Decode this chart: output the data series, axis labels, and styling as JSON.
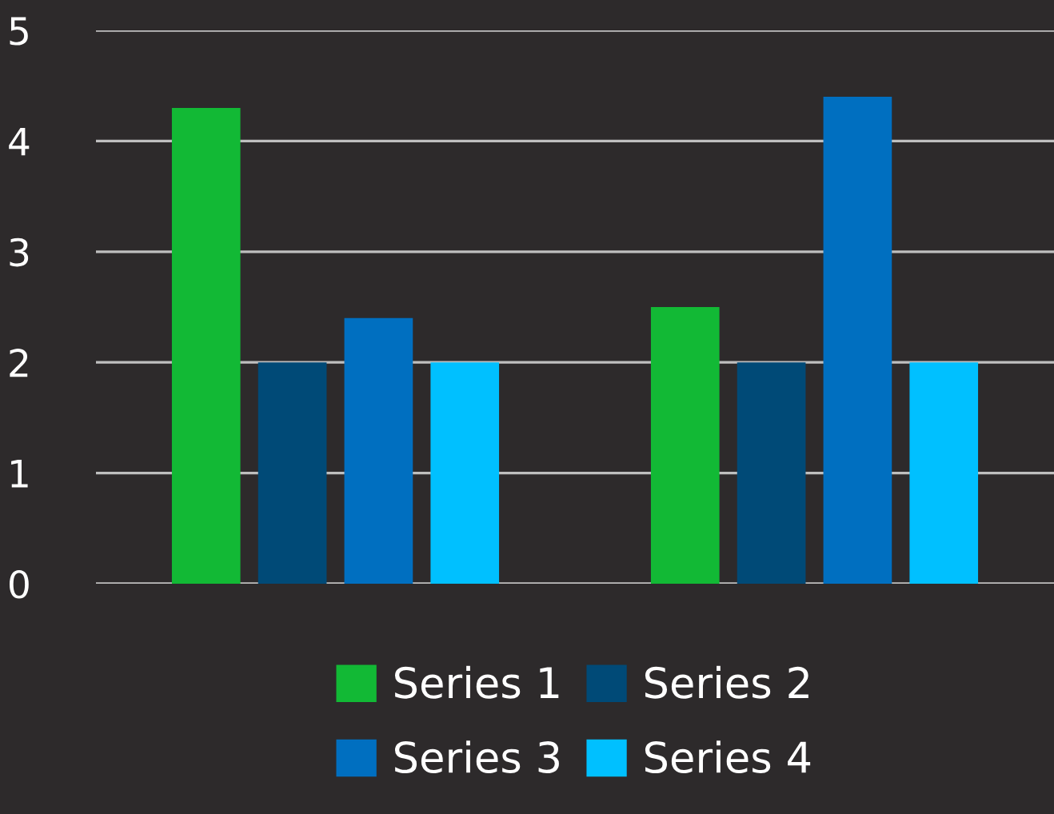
{
  "chart_data": {
    "type": "bar",
    "categories": [
      null,
      null
    ],
    "series": [
      {
        "name": "Series 1",
        "color": "#12b935",
        "values": [
          4.3,
          2.5
        ]
      },
      {
        "name": "Series 2",
        "color": "#004a77",
        "values": [
          2.0,
          2.0
        ]
      },
      {
        "name": "Series 3",
        "color": "#006fc0",
        "values": [
          2.4,
          4.4
        ]
      },
      {
        "name": "Series 4",
        "color": "#00c0ff",
        "values": [
          2.0,
          2.0
        ]
      }
    ],
    "ylim": [
      0,
      5
    ],
    "yticks": [
      0,
      1,
      2,
      3,
      4,
      5
    ],
    "grid": "y",
    "legend": "bottom",
    "tick_labels": "y"
  }
}
